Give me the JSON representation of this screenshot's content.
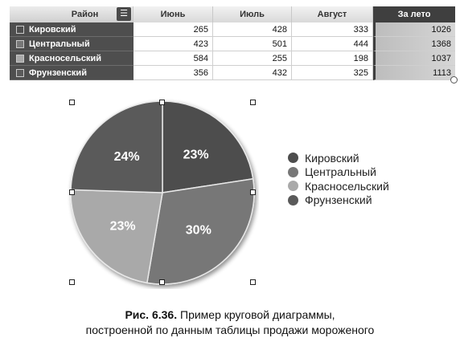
{
  "table": {
    "columns": [
      "Район",
      "Июнь",
      "Июль",
      "Август",
      "За лето"
    ],
    "rows": [
      {
        "name": "Кировский",
        "values": [
          "265",
          "428",
          "333",
          "1026"
        ]
      },
      {
        "name": "Центральный",
        "values": [
          "423",
          "501",
          "444",
          "1368"
        ]
      },
      {
        "name": "Красносельский",
        "values": [
          "584",
          "255",
          "198",
          "1037"
        ]
      },
      {
        "name": "Фрунзенский",
        "values": [
          "356",
          "432",
          "325",
          "1113"
        ]
      }
    ],
    "menu_icon": "list-icon"
  },
  "chart_data": {
    "type": "pie",
    "title": "",
    "categories": [
      "Кировский",
      "Центральный",
      "Красносельский",
      "Фрунзенский"
    ],
    "values": [
      1026,
      1368,
      1037,
      1113
    ],
    "labels": [
      "23%",
      "30%",
      "23%",
      "24%"
    ],
    "colors": [
      "#4d4d4d",
      "#777777",
      "#a9a9a9",
      "#5a5a5a"
    ],
    "legend_position": "right"
  },
  "caption": {
    "label": "Рис. 6.36.",
    "line1": "Пример круговой диаграммы,",
    "line2": "построенной по данным таблицы продажи мороженого"
  }
}
